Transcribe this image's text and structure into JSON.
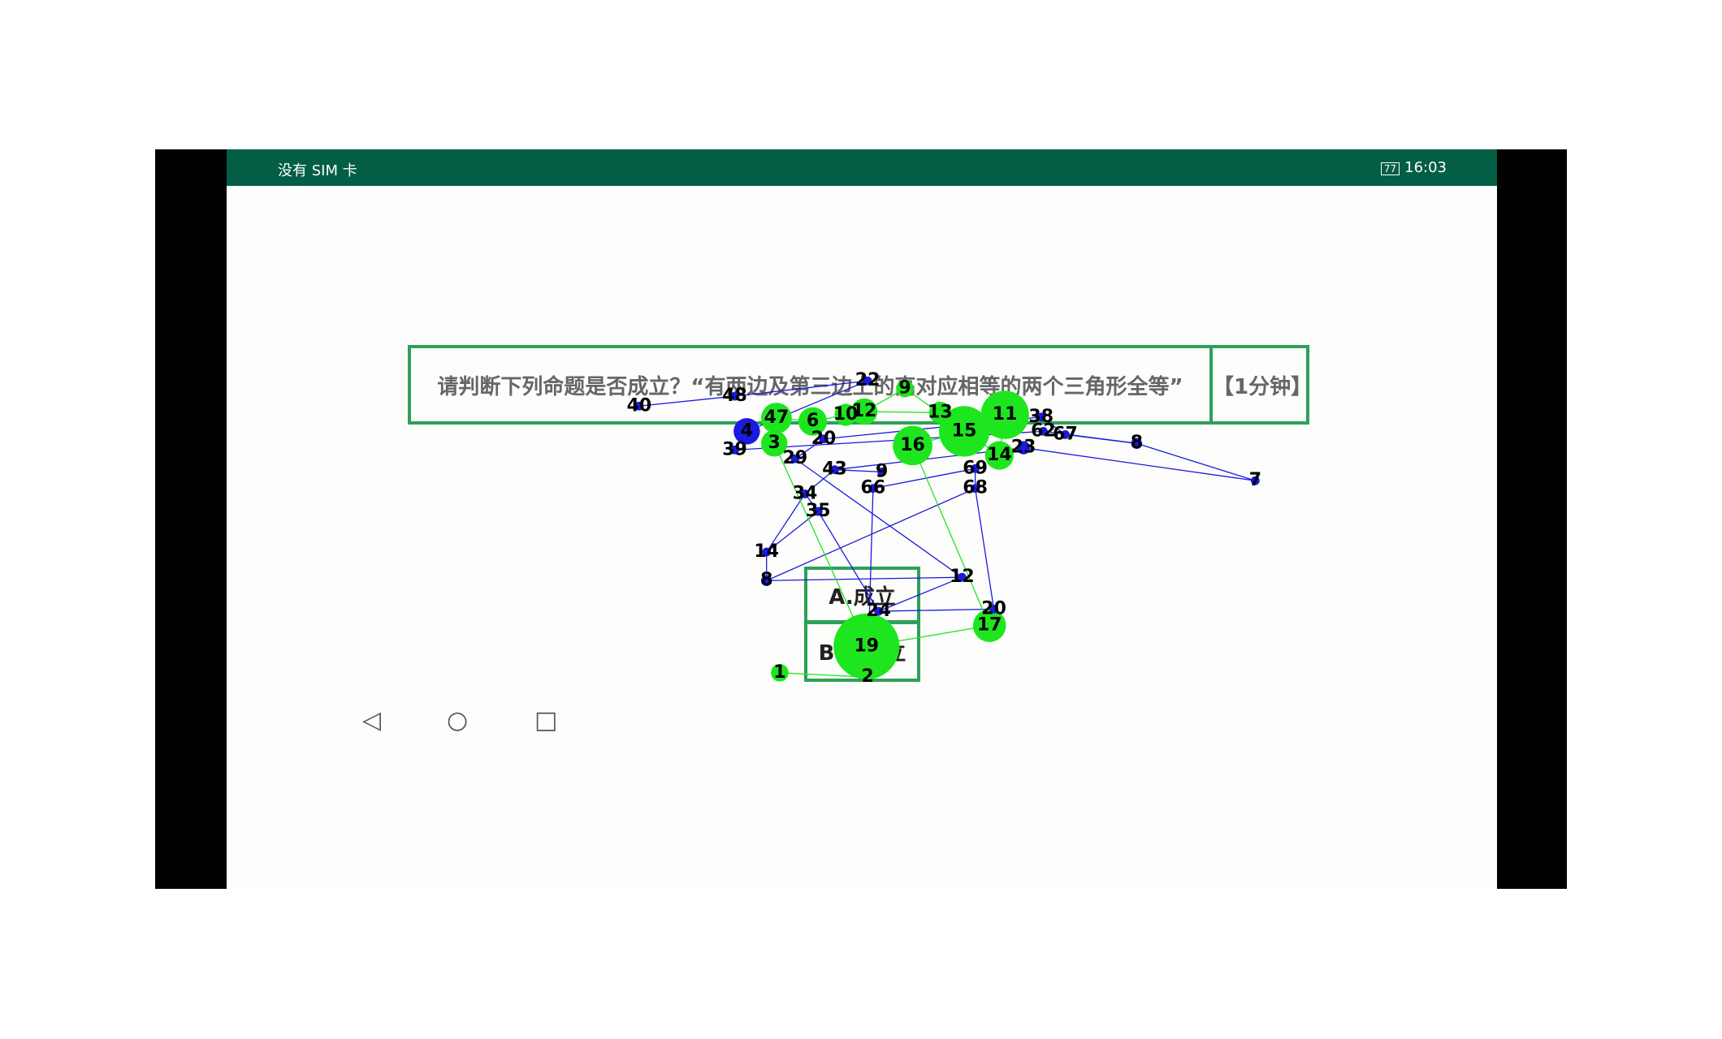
{
  "status_bar": {
    "carrier": "没有 SIM 卡",
    "battery": "77",
    "time": "16:03"
  },
  "question": {
    "text": "请判断下列命题是否成立？“有两边及第三边上的高对应相等的两个三角形全等”",
    "timer": "【1分钟】"
  },
  "options": [
    "A.成立",
    "B.不成立"
  ],
  "nodes": [
    {
      "label": "19"
    },
    {
      "label": "17"
    },
    {
      "label": "1"
    },
    {
      "label": "2"
    },
    {
      "label": "15"
    },
    {
      "label": "11"
    },
    {
      "label": "16"
    },
    {
      "label": "14"
    },
    {
      "label": "12"
    },
    {
      "label": "10"
    },
    {
      "label": "6"
    },
    {
      "label": "47"
    },
    {
      "label": "3"
    },
    {
      "label": "9"
    },
    {
      "label": "13"
    },
    {
      "label": "4"
    },
    {
      "label": "40"
    },
    {
      "label": "48"
    },
    {
      "label": "39"
    },
    {
      "label": "22"
    },
    {
      "label": "34"
    },
    {
      "label": "35"
    },
    {
      "label": "14"
    },
    {
      "label": "8"
    },
    {
      "label": "12"
    },
    {
      "label": "20"
    },
    {
      "label": "24"
    },
    {
      "label": "7"
    },
    {
      "label": "8"
    },
    {
      "label": "67"
    },
    {
      "label": "62"
    },
    {
      "label": "38"
    },
    {
      "label": "23"
    },
    {
      "label": "68"
    },
    {
      "label": "69"
    },
    {
      "label": "66"
    },
    {
      "label": "43"
    },
    {
      "label": "29"
    },
    {
      "label": "9"
    },
    {
      "label": "20"
    }
  ]
}
